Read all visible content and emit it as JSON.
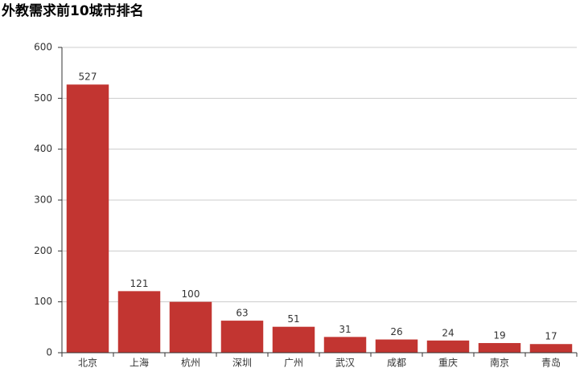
{
  "chart_data": {
    "type": "bar",
    "title": "外教需求前10城市排名",
    "categories": [
      "北京",
      "上海",
      "杭州",
      "深圳",
      "广州",
      "武汉",
      "成都",
      "重庆",
      "南京",
      "青岛"
    ],
    "values": [
      527,
      121,
      100,
      63,
      51,
      31,
      26,
      24,
      19,
      17
    ],
    "color": "#c23531",
    "ylim": [
      0,
      600
    ],
    "yticks": [
      0,
      100,
      200,
      300,
      400,
      500,
      600
    ],
    "grid": true
  }
}
